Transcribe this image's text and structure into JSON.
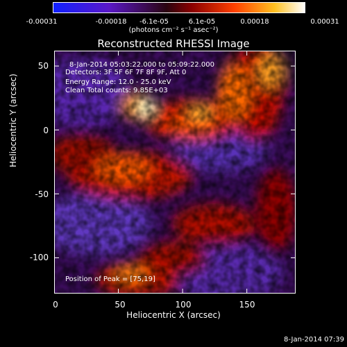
{
  "colorbar": {
    "ticks": [
      "-0.00031",
      "-0.00018",
      "-6.1e-05",
      "6.1e-05",
      "0.00018",
      "0.00031"
    ],
    "unit": "(photons cm⁻² s⁻¹ asec⁻²)",
    "colors": [
      "#1a20ff",
      "#5e17c8",
      "#3a0418",
      "#a00000",
      "#ff5a00",
      "#ffe040",
      "#ffffff"
    ]
  },
  "title": "Reconstructed RHESSI Image",
  "info": {
    "time_range": "8-Jan-2014 05:03:22.000 to 05:09:22.000",
    "detectors": "Detectors: 3F 5F 6F 7F 8F 9F, Att 0",
    "energy": "Energy Range: 12.0 - 25.0 keV",
    "clean": "Clean     Total counts: 9.85E+03"
  },
  "peak": "Position of Peak = [75,19]",
  "axes": {
    "xlabel": "Heliocentric X (arcsec)",
    "ylabel": "Heliocentric Y (arcsec)",
    "xticks": [
      "0",
      "50",
      "100",
      "150"
    ],
    "yticks": [
      "50",
      "0",
      "-50",
      "-100"
    ],
    "xlim": [
      0,
      188
    ],
    "ylim": [
      -128,
      62
    ]
  },
  "datestamp": "8-Jan-2014 07:39"
}
